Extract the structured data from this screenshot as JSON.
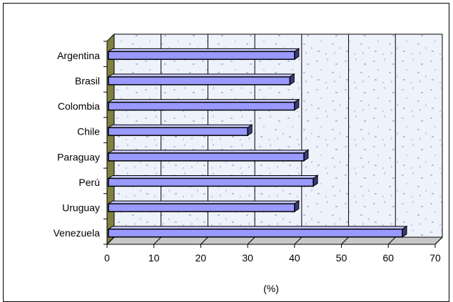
{
  "chart_data": {
    "type": "bar",
    "orientation": "horizontal",
    "categories": [
      "Argentina",
      "Brasil",
      "Colombia",
      "Chile",
      "Paraguay",
      "Perú",
      "Uruguay",
      "Venezuela"
    ],
    "values": [
      40,
      39,
      40,
      30,
      42,
      44,
      40,
      63
    ],
    "xlabel": "(%)",
    "ylabel": "",
    "xlim": [
      0,
      70
    ],
    "xticks": [
      0,
      10,
      20,
      30,
      40,
      50,
      60,
      70
    ],
    "grid": true,
    "legend": "none",
    "colors": {
      "bar_fill": "#9999ff",
      "bar_outline": "#000000",
      "bar_side": "#3a3a7a",
      "plot_background": "#e8eef8",
      "floor_wall": "#808040"
    }
  }
}
